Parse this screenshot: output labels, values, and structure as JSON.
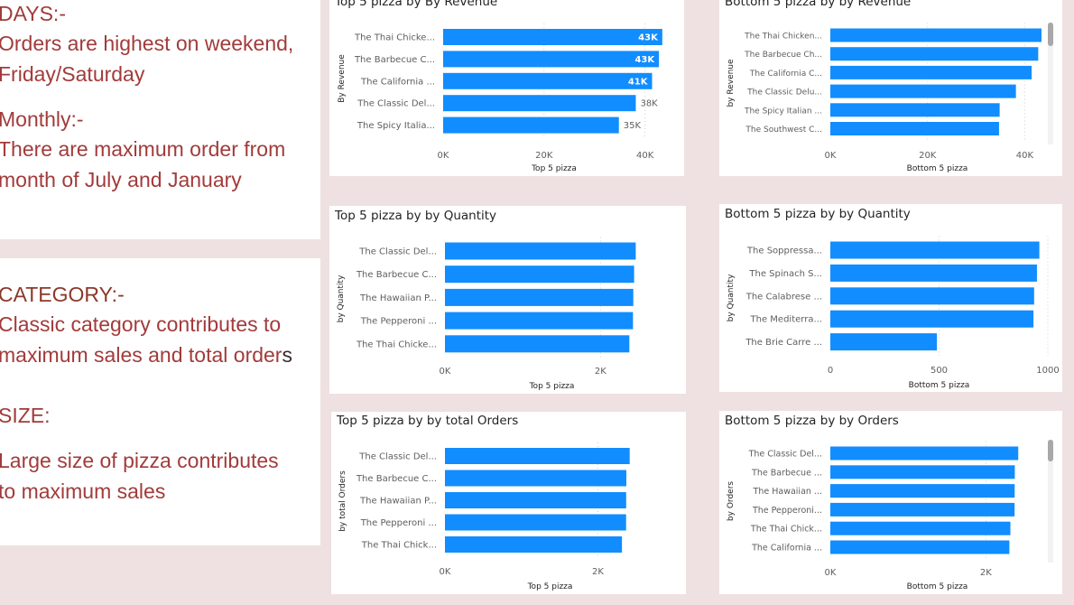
{
  "insights": {
    "days": {
      "heading": "DAYS:-",
      "line1": "Orders are highest on weekend,",
      "line2": "Friday/Saturday"
    },
    "monthly": {
      "heading": "Monthly:-",
      "line1": "There are maximum order from",
      "line2": "month of July and January"
    },
    "category": {
      "heading": "CATEGORY:-",
      "line1": "Classic category contributes to",
      "line2a": "maximum sales and total order",
      "line2b": "s"
    },
    "size": {
      "heading": "SIZE:",
      "line1": "Large size of pizza contributes",
      "line2": "to maximum sales"
    }
  },
  "colors": {
    "bar": "#118dff",
    "background": "#efe1e1",
    "text": "#605e5c",
    "title": "#252423",
    "note_text": "#a23b3b"
  },
  "chart_data": [
    {
      "id": "top-revenue",
      "type": "bar",
      "orientation": "horizontal",
      "title": "Top 5 pizza by By Revenue",
      "xlabel": "Top 5 pizza",
      "ylabel": "By Revenue",
      "categories": [
        "The Thai Chicke...",
        "The Barbecue C...",
        "The California ...",
        "The Classic Del...",
        "The Spicy Italia..."
      ],
      "values": [
        43434,
        42768,
        41410,
        38180,
        34831
      ],
      "data_labels": [
        "43K",
        "43K",
        "41K",
        "38K",
        "35K"
      ],
      "xlim": [
        0,
        44000
      ],
      "xticks": [
        0,
        20000,
        40000
      ],
      "xtick_labels": [
        "0K",
        "20K",
        "40K"
      ],
      "grid": true,
      "scrollbar": false
    },
    {
      "id": "bottom-revenue",
      "type": "bar",
      "orientation": "horizontal",
      "title": "Bottom 5 pizza by by Revenue",
      "xlabel": "Bottom 5 pizza",
      "ylabel": "by Revenue",
      "categories": [
        "The Thai Chicken...",
        "The Barbecue Ch...",
        "The California C...",
        "The Classic Delu...",
        "The Spicy Italian ...",
        "The Southwest C..."
      ],
      "values": [
        43434,
        42768,
        41410,
        38180,
        34831,
        34706
      ],
      "data_labels": [],
      "xlim": [
        0,
        44000
      ],
      "xticks": [
        0,
        20000,
        40000
      ],
      "xtick_labels": [
        "0K",
        "20K",
        "40K"
      ],
      "grid": true,
      "scrollbar": true
    },
    {
      "id": "top-quantity",
      "type": "bar",
      "orientation": "horizontal",
      "title": "Top 5 pizza by by Quantity",
      "xlabel": "Top 5 pizza",
      "ylabel": "by Quantity",
      "categories": [
        "The Classic Del...",
        "The Barbecue C...",
        "The Hawaiian P...",
        "The Pepperoni ...",
        "The Thai Chicke..."
      ],
      "values": [
        2453,
        2432,
        2422,
        2418,
        2371
      ],
      "data_labels": [],
      "xlim": [
        0,
        2750
      ],
      "xticks": [
        0,
        2000
      ],
      "xtick_labels": [
        "0K",
        "2K"
      ],
      "grid": true,
      "scrollbar": false
    },
    {
      "id": "bottom-quantity",
      "type": "bar",
      "orientation": "horizontal",
      "title": "Bottom 5 pizza by by Quantity",
      "xlabel": "Bottom 5 pizza",
      "ylabel": "by Quantity",
      "categories": [
        "The Soppressa...",
        "The Spinach S...",
        "The Calabrese ...",
        "The Mediterra...",
        "The Brie Carre ..."
      ],
      "values": [
        961,
        950,
        937,
        934,
        490
      ],
      "data_labels": [],
      "xlim": [
        0,
        1000
      ],
      "xticks": [
        0,
        500,
        1000
      ],
      "xtick_labels": [
        "0",
        "500",
        "1000"
      ],
      "grid": true,
      "scrollbar": false
    },
    {
      "id": "top-orders",
      "type": "bar",
      "orientation": "horizontal",
      "title": "Top 5 pizza by by total Orders",
      "xlabel": "Top 5 pizza",
      "ylabel": "by total Orders",
      "categories": [
        "The Classic Del...",
        "The Barbecue C...",
        "The Hawaiian P...",
        "The Pepperoni ...",
        "The Thai Chick..."
      ],
      "values": [
        2416,
        2372,
        2370,
        2369,
        2315
      ],
      "data_labels": [],
      "xlim": [
        0,
        2750
      ],
      "xticks": [
        0,
        2000
      ],
      "xtick_labels": [
        "0K",
        "2K"
      ],
      "grid": true,
      "scrollbar": false
    },
    {
      "id": "bottom-orders",
      "type": "bar",
      "orientation": "horizontal",
      "title": "Bottom 5 pizza by by Orders",
      "xlabel": "Bottom 5 pizza",
      "ylabel": "by Orders",
      "categories": [
        "The Classic Del...",
        "The Barbecue ...",
        "The Hawaiian ...",
        "The Pepperoni...",
        "The Thai Chick...",
        "The California ..."
      ],
      "values": [
        2416,
        2372,
        2370,
        2369,
        2315,
        2302
      ],
      "data_labels": [],
      "xlim": [
        0,
        2750
      ],
      "xticks": [
        0,
        2000
      ],
      "xtick_labels": [
        "0K",
        "2K"
      ],
      "grid": true,
      "scrollbar": true
    }
  ]
}
